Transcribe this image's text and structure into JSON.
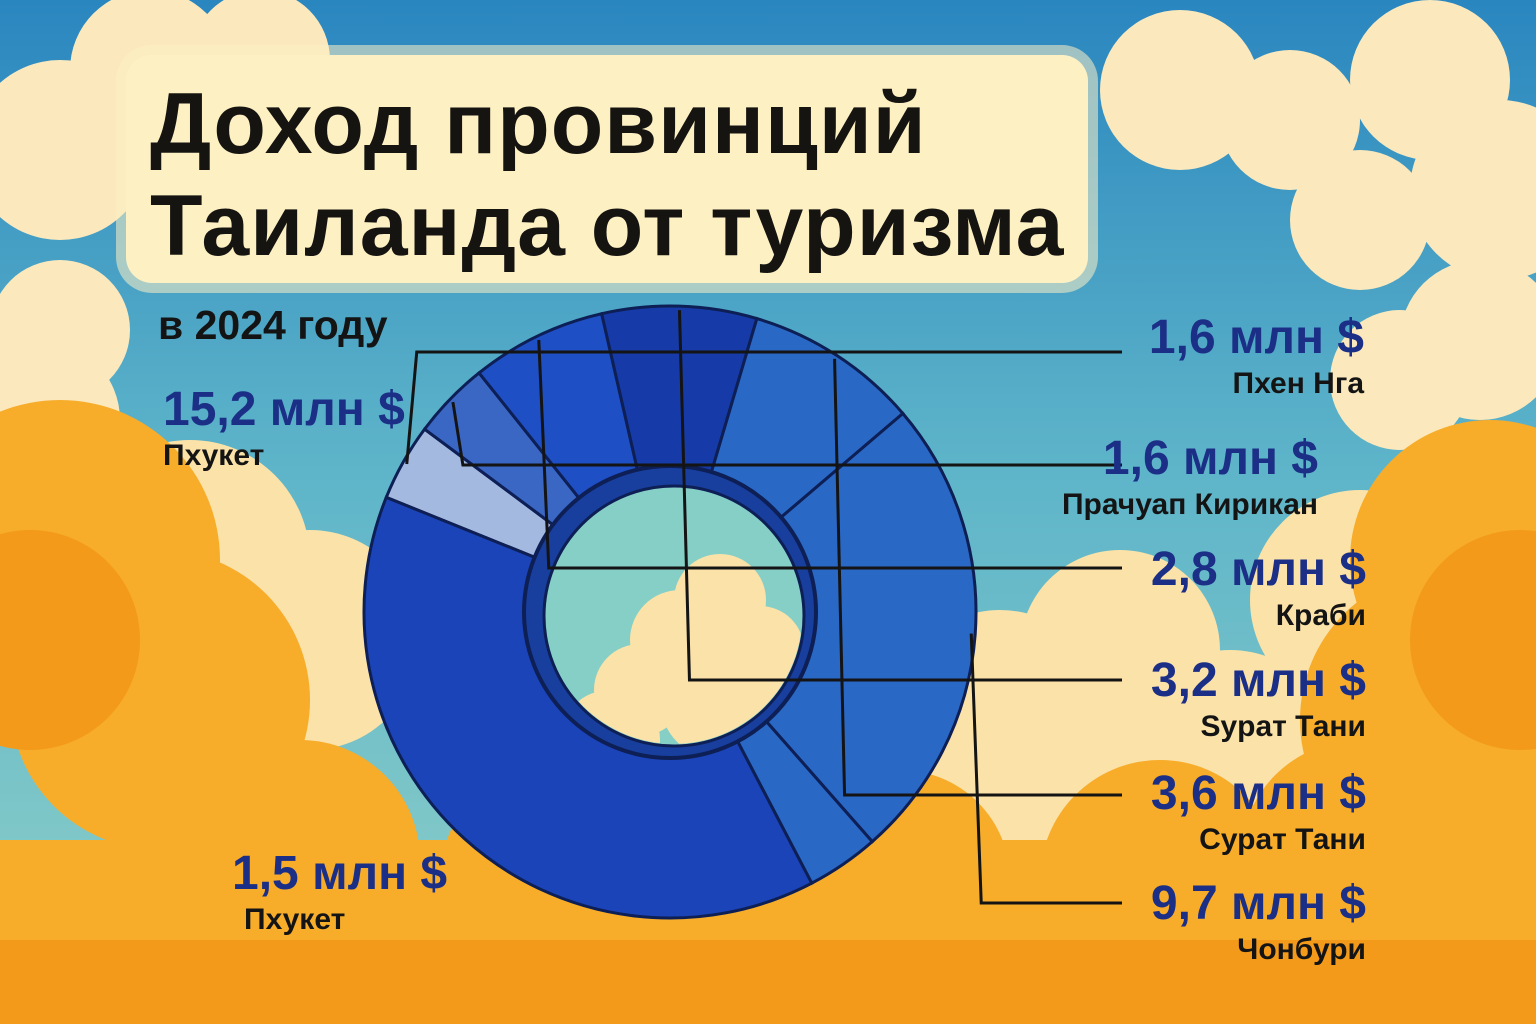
{
  "title_line1": "Доход провинций",
  "title_line2": "Таиланда от туризма",
  "subtitle": "в 2024 году",
  "colors": {
    "sky": "#2e8dc0",
    "cloud": "#fdf1c4",
    "orange": "#f7a21c",
    "value_text": "#1b2f86"
  },
  "chart_data": {
    "type": "pie",
    "unit": "млн $",
    "slices": [
      {
        "label": "Пхукет",
        "value_text": "15,2 млн $",
        "value": 15.2,
        "color": "#1b44b8"
      },
      {
        "label": "Пхен Нга",
        "value_text": "1,6 млн $",
        "value": 1.6,
        "color": "#a4b9df"
      },
      {
        "label": "Прачуап Кирикан",
        "value_text": "1,6 млн $",
        "value": 1.6,
        "color": "#3a66c4"
      },
      {
        "label": "Краби",
        "value_text": "2,8 млн $",
        "value": 2.8,
        "color": "#1f4fc4"
      },
      {
        "label": "Sypaт Тани",
        "value_text": "3,2 млн $",
        "value": 3.2,
        "color": "#163ba8"
      },
      {
        "label": "Сурат Тани",
        "value_text": "3,6 млн $",
        "value": 3.6,
        "color": "#2a68c6"
      },
      {
        "label": "Чонбури",
        "value_text": "9,7 млн $",
        "value": 9.7,
        "color": "#2a68c6"
      },
      {
        "label": "Пхукет",
        "value_text": "1,5 млн $",
        "value": 1.5,
        "color": "#2a68c6"
      }
    ]
  }
}
